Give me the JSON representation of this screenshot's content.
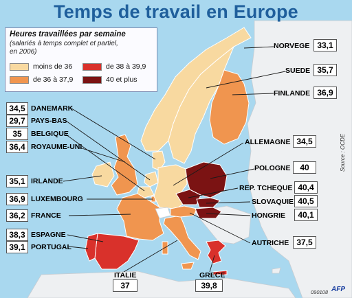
{
  "title": "Temps de travail en Europe",
  "legend": {
    "title": "Heures travaillées par semaine",
    "subtitle_1": "(salariés à temps complet et partiel,",
    "subtitle_2": "en 2006)",
    "items": [
      {
        "label": "moins de 36",
        "color": "#f8d9a0"
      },
      {
        "label": "de 36 à 37,9",
        "color": "#f0954f"
      },
      {
        "label": "de 38 à 39,9",
        "color": "#d9312b"
      },
      {
        "label": "40 et plus",
        "color": "#7b1313"
      }
    ]
  },
  "countries": [
    {
      "name": "NORVEGE",
      "value": "33,1",
      "category": "moins de 36"
    },
    {
      "name": "SUEDE",
      "value": "35,7",
      "category": "moins de 36"
    },
    {
      "name": "FINLANDE",
      "value": "36,9",
      "category": "de 36 à 37,9"
    },
    {
      "name": "DANEMARK",
      "value": "34,5",
      "category": "moins de 36"
    },
    {
      "name": "PAYS-BAS",
      "value": "29,7",
      "category": "moins de 36"
    },
    {
      "name": "BELGIQUE",
      "value": "35",
      "category": "moins de 36"
    },
    {
      "name": "ROYAUME-UNI",
      "value": "36,4",
      "category": "de 36 à 37,9"
    },
    {
      "name": "IRLANDE",
      "value": "35,1",
      "category": "moins de 36"
    },
    {
      "name": "LUXEMBOURG",
      "value": "36,9",
      "category": "de 36 à 37,9"
    },
    {
      "name": "FRANCE",
      "value": "36,2",
      "category": "de 36 à 37,9"
    },
    {
      "name": "ESPAGNE",
      "value": "38,3",
      "category": "de 38 à 39,9"
    },
    {
      "name": "PORTUGAL",
      "value": "39,1",
      "category": "de 38 à 39,9"
    },
    {
      "name": "ALLEMAGNE",
      "value": "34,5",
      "category": "moins de 36"
    },
    {
      "name": "POLOGNE",
      "value": "40",
      "category": "40 et plus"
    },
    {
      "name": "REP. TCHEQUE",
      "value": "40,4",
      "category": "40 et plus"
    },
    {
      "name": "SLOVAQUIE",
      "value": "40,5",
      "category": "40 et plus"
    },
    {
      "name": "HONGRIE",
      "value": "40,1",
      "category": "40 et plus"
    },
    {
      "name": "AUTRICHE",
      "value": "37,5",
      "category": "de 36 à 37,9"
    },
    {
      "name": "ITALIE",
      "value": "37",
      "category": "de 36 à 37,9"
    },
    {
      "name": "GRECE",
      "value": "39,8",
      "category": "de 38 à 39,9"
    }
  ],
  "colors": {
    "sea": "#a9d8ef",
    "non_member": "#eef0f2",
    "title": "#1f5f9c"
  },
  "source": "Source : OCDE",
  "code": "090108",
  "agency": "AFP"
}
